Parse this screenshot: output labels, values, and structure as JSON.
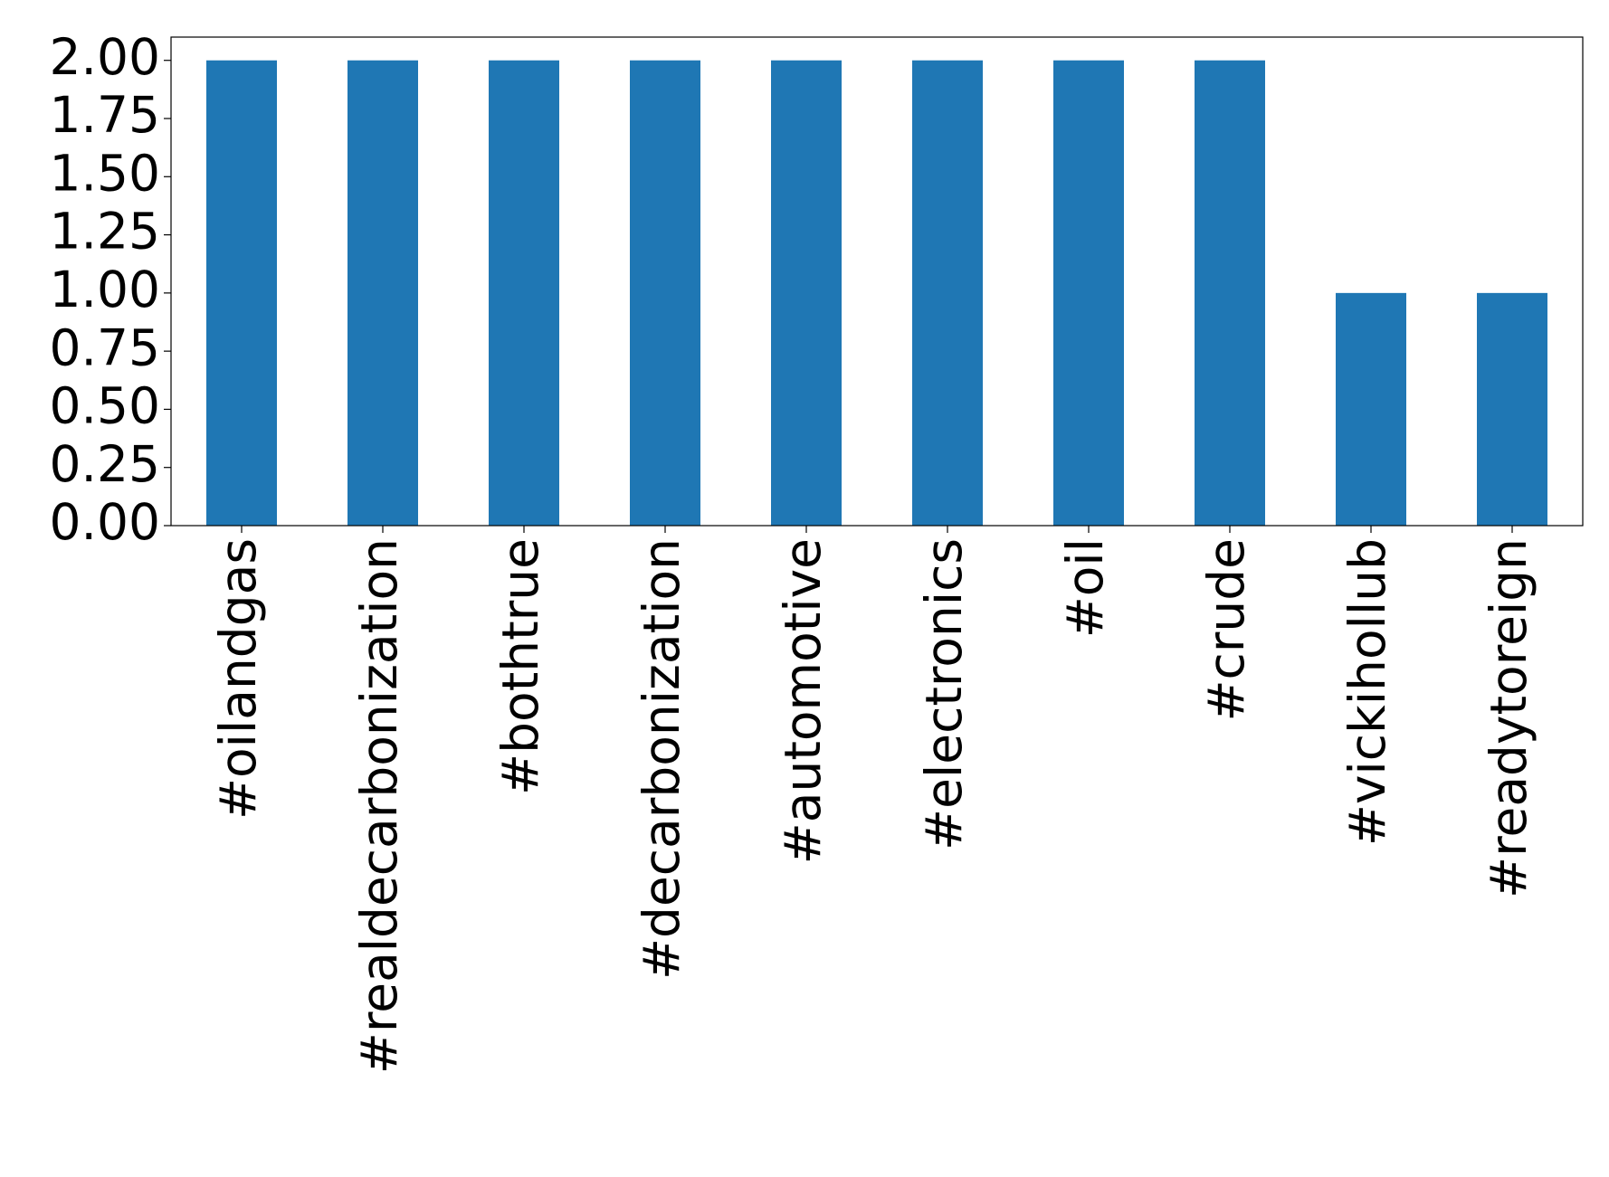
{
  "chart_data": {
    "type": "bar",
    "categories": [
      "#oilandgas",
      "#realdecarbonization",
      "#bothtrue",
      "#decarbonization",
      "#automotive",
      "#electronics",
      "#oil",
      "#crude",
      "#vickihollub",
      "#readytoreign"
    ],
    "values": [
      2,
      2,
      2,
      2,
      2,
      2,
      2,
      2,
      1,
      1
    ],
    "color": "#1f77b4",
    "ylim": [
      0,
      2.1
    ],
    "yticks": [
      {
        "value": 0,
        "label": "0.00"
      },
      {
        "value": 0.25,
        "label": "0.25"
      },
      {
        "value": 0.5,
        "label": "0.50"
      },
      {
        "value": 0.75,
        "label": "0.75"
      },
      {
        "value": 1,
        "label": "1.00"
      },
      {
        "value": 1.25,
        "label": "1.25"
      },
      {
        "value": 1.5,
        "label": "1.50"
      },
      {
        "value": 1.75,
        "label": "1.75"
      },
      {
        "value": 2,
        "label": "2.00"
      }
    ]
  }
}
